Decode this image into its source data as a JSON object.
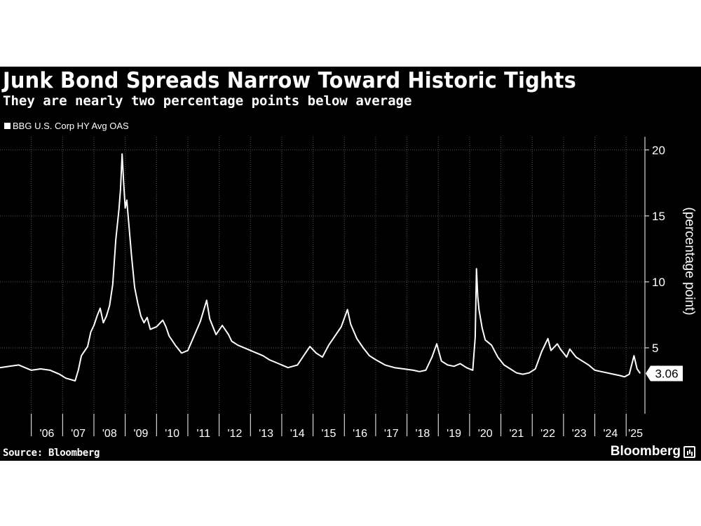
{
  "header": {
    "title": "Junk Bond Spreads Narrow Toward Historic Tights",
    "subtitle": "They are nearly two percentage points below average"
  },
  "footer": {
    "source": "Source: Bloomberg",
    "brand": "Bloomberg"
  },
  "colors": {
    "background": "#000000",
    "line": "#ffffff",
    "grid": "#555555"
  },
  "chart_data": {
    "type": "line",
    "title": "Junk Bond Spreads Narrow Toward Historic Tights",
    "subtitle": "They are nearly two percentage points below average",
    "ylabel": "(percentage point)",
    "ylim": [
      0,
      21
    ],
    "xlim": [
      2005,
      2025.6
    ],
    "yticks": [
      5,
      10,
      15,
      20
    ],
    "ytick_labels": [
      "5",
      "10",
      "15",
      "20"
    ],
    "xtick_labels": [
      "'06",
      "'07",
      "'08",
      "'09",
      "'10",
      "'11",
      "'12",
      "'13",
      "'14",
      "'15",
      "'16",
      "'17",
      "'18",
      "'19",
      "'20",
      "'21",
      "'22",
      "'23",
      "'24",
      "'25"
    ],
    "grid": true,
    "legend_position": "top-left",
    "last_value_label": "3.06",
    "series": [
      {
        "name": "BBG U.S. Corp HY Avg OAS",
        "x": [
          2005.0,
          2005.3,
          2005.6,
          2005.8,
          2006.0,
          2006.3,
          2006.6,
          2006.9,
          2007.1,
          2007.4,
          2007.5,
          2007.6,
          2007.8,
          2007.9,
          2008.0,
          2008.1,
          2008.2,
          2008.3,
          2008.4,
          2008.5,
          2008.6,
          2008.7,
          2008.8,
          2008.85,
          2008.9,
          2008.95,
          2009.0,
          2009.05,
          2009.1,
          2009.2,
          2009.3,
          2009.4,
          2009.5,
          2009.6,
          2009.7,
          2009.8,
          2010.0,
          2010.2,
          2010.3,
          2010.4,
          2010.6,
          2010.8,
          2011.0,
          2011.2,
          2011.4,
          2011.6,
          2011.7,
          2011.8,
          2011.9,
          2012.1,
          2012.3,
          2012.4,
          2012.6,
          2012.9,
          2013.1,
          2013.4,
          2013.6,
          2013.9,
          2014.2,
          2014.5,
          2014.7,
          2014.9,
          2015.1,
          2015.3,
          2015.5,
          2015.7,
          2015.9,
          2016.1,
          2016.2,
          2016.4,
          2016.6,
          2016.8,
          2017.0,
          2017.3,
          2017.6,
          2017.9,
          2018.2,
          2018.4,
          2018.6,
          2018.8,
          2018.95,
          2019.1,
          2019.3,
          2019.5,
          2019.7,
          2019.9,
          2020.1,
          2020.18,
          2020.22,
          2020.26,
          2020.3,
          2020.4,
          2020.5,
          2020.7,
          2020.9,
          2021.1,
          2021.3,
          2021.5,
          2021.7,
          2021.9,
          2022.1,
          2022.3,
          2022.5,
          2022.6,
          2022.8,
          2022.9,
          2023.1,
          2023.2,
          2023.4,
          2023.6,
          2023.8,
          2024.0,
          2024.2,
          2024.4,
          2024.6,
          2024.8,
          2024.95,
          2025.1,
          2025.25,
          2025.35,
          2025.45
        ],
        "values": [
          3.5,
          3.6,
          3.7,
          3.5,
          3.3,
          3.4,
          3.3,
          3.0,
          2.7,
          2.5,
          3.3,
          4.4,
          5.1,
          6.2,
          6.7,
          7.4,
          8.0,
          6.9,
          7.4,
          8.2,
          9.8,
          13.2,
          15.5,
          17.0,
          19.7,
          17.5,
          15.6,
          16.2,
          14.8,
          12.0,
          9.6,
          8.4,
          7.4,
          6.9,
          7.3,
          6.4,
          6.6,
          7.1,
          6.6,
          5.9,
          5.2,
          4.6,
          4.8,
          5.9,
          7.0,
          8.6,
          7.2,
          6.6,
          6.0,
          6.7,
          6.0,
          5.5,
          5.2,
          4.9,
          4.7,
          4.4,
          4.1,
          3.8,
          3.5,
          3.7,
          4.4,
          5.1,
          4.6,
          4.3,
          5.2,
          5.9,
          6.6,
          7.9,
          6.8,
          5.7,
          5.0,
          4.4,
          4.1,
          3.7,
          3.5,
          3.4,
          3.3,
          3.2,
          3.3,
          4.3,
          5.3,
          4.0,
          3.7,
          3.6,
          3.8,
          3.5,
          3.3,
          5.8,
          11.0,
          8.9,
          7.9,
          6.5,
          5.6,
          5.2,
          4.3,
          3.7,
          3.4,
          3.1,
          3.0,
          3.1,
          3.4,
          4.7,
          5.7,
          4.8,
          5.3,
          4.9,
          4.3,
          4.9,
          4.3,
          4.0,
          3.7,
          3.3,
          3.2,
          3.1,
          3.0,
          2.9,
          2.8,
          3.0,
          4.4,
          3.4,
          3.06
        ]
      }
    ]
  }
}
